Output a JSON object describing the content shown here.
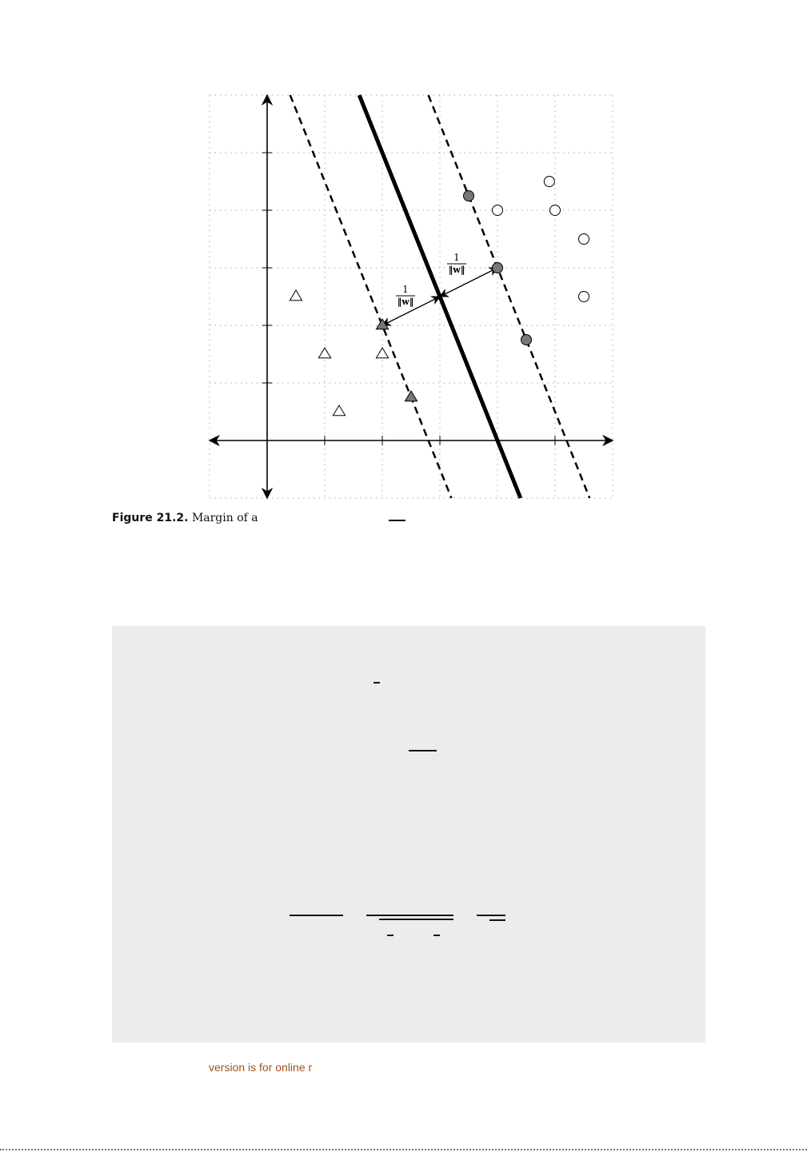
{
  "figure": {
    "margin_label_numerator": "1",
    "margin_label_denominator": "‖w‖",
    "triangles_hollow": [
      [
        0.5,
        2.5
      ],
      [
        1.0,
        1.5
      ],
      [
        2.0,
        1.5
      ],
      [
        1.25,
        0.5
      ]
    ],
    "triangles_filled": [
      [
        2.0,
        2.0
      ],
      [
        2.5,
        0.75
      ]
    ],
    "circles_hollow": [
      [
        4.0,
        4.0
      ],
      [
        4.9,
        4.5
      ],
      [
        5.0,
        4.0
      ],
      [
        5.5,
        3.5
      ],
      [
        5.5,
        2.5
      ]
    ],
    "circles_filled": [
      [
        3.5,
        4.25
      ],
      [
        4.0,
        3.0
      ],
      [
        4.5,
        1.75
      ]
    ],
    "separator": [
      [
        1.6,
        6.0
      ],
      [
        4.4,
        -1.0
      ]
    ],
    "margin_lower": [
      [
        0.4,
        6.0
      ],
      [
        3.2,
        -1.0
      ]
    ],
    "margin_upper": [
      [
        2.8,
        6.0
      ],
      [
        5.6,
        -1.0
      ]
    ],
    "arrows": [
      [
        [
          2.0,
          2.0
        ],
        [
          3.0,
          2.5
        ]
      ],
      [
        [
          3.0,
          2.5
        ],
        [
          4.0,
          3.0
        ]
      ]
    ],
    "xlim": [
      -1,
      6
    ],
    "ylim": [
      -1,
      6
    ]
  },
  "caption": {
    "label": "Figure 21.2.",
    "text": "Margin of a"
  },
  "footer": {
    "text": "version is for online r"
  },
  "colors": {
    "filled_marker": "#777777",
    "box_background": "#ececec",
    "footer_text": "#a0521c"
  }
}
